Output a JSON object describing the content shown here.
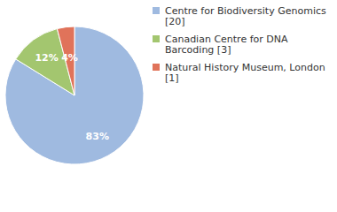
{
  "chart_data": {
    "type": "pie",
    "categories": [
      "Centre for Biodiversity Genomics [20]",
      "Canadian Centre for DNA Barcoding [3]",
      "Natural History Museum, London [1]"
    ],
    "values": [
      83,
      12,
      4
    ],
    "value_labels": [
      "83%",
      "12%",
      "4%"
    ],
    "colors": [
      "#9fbae0",
      "#a3c66f",
      "#e0735a"
    ],
    "data_labels": true,
    "legend": "top-right"
  }
}
